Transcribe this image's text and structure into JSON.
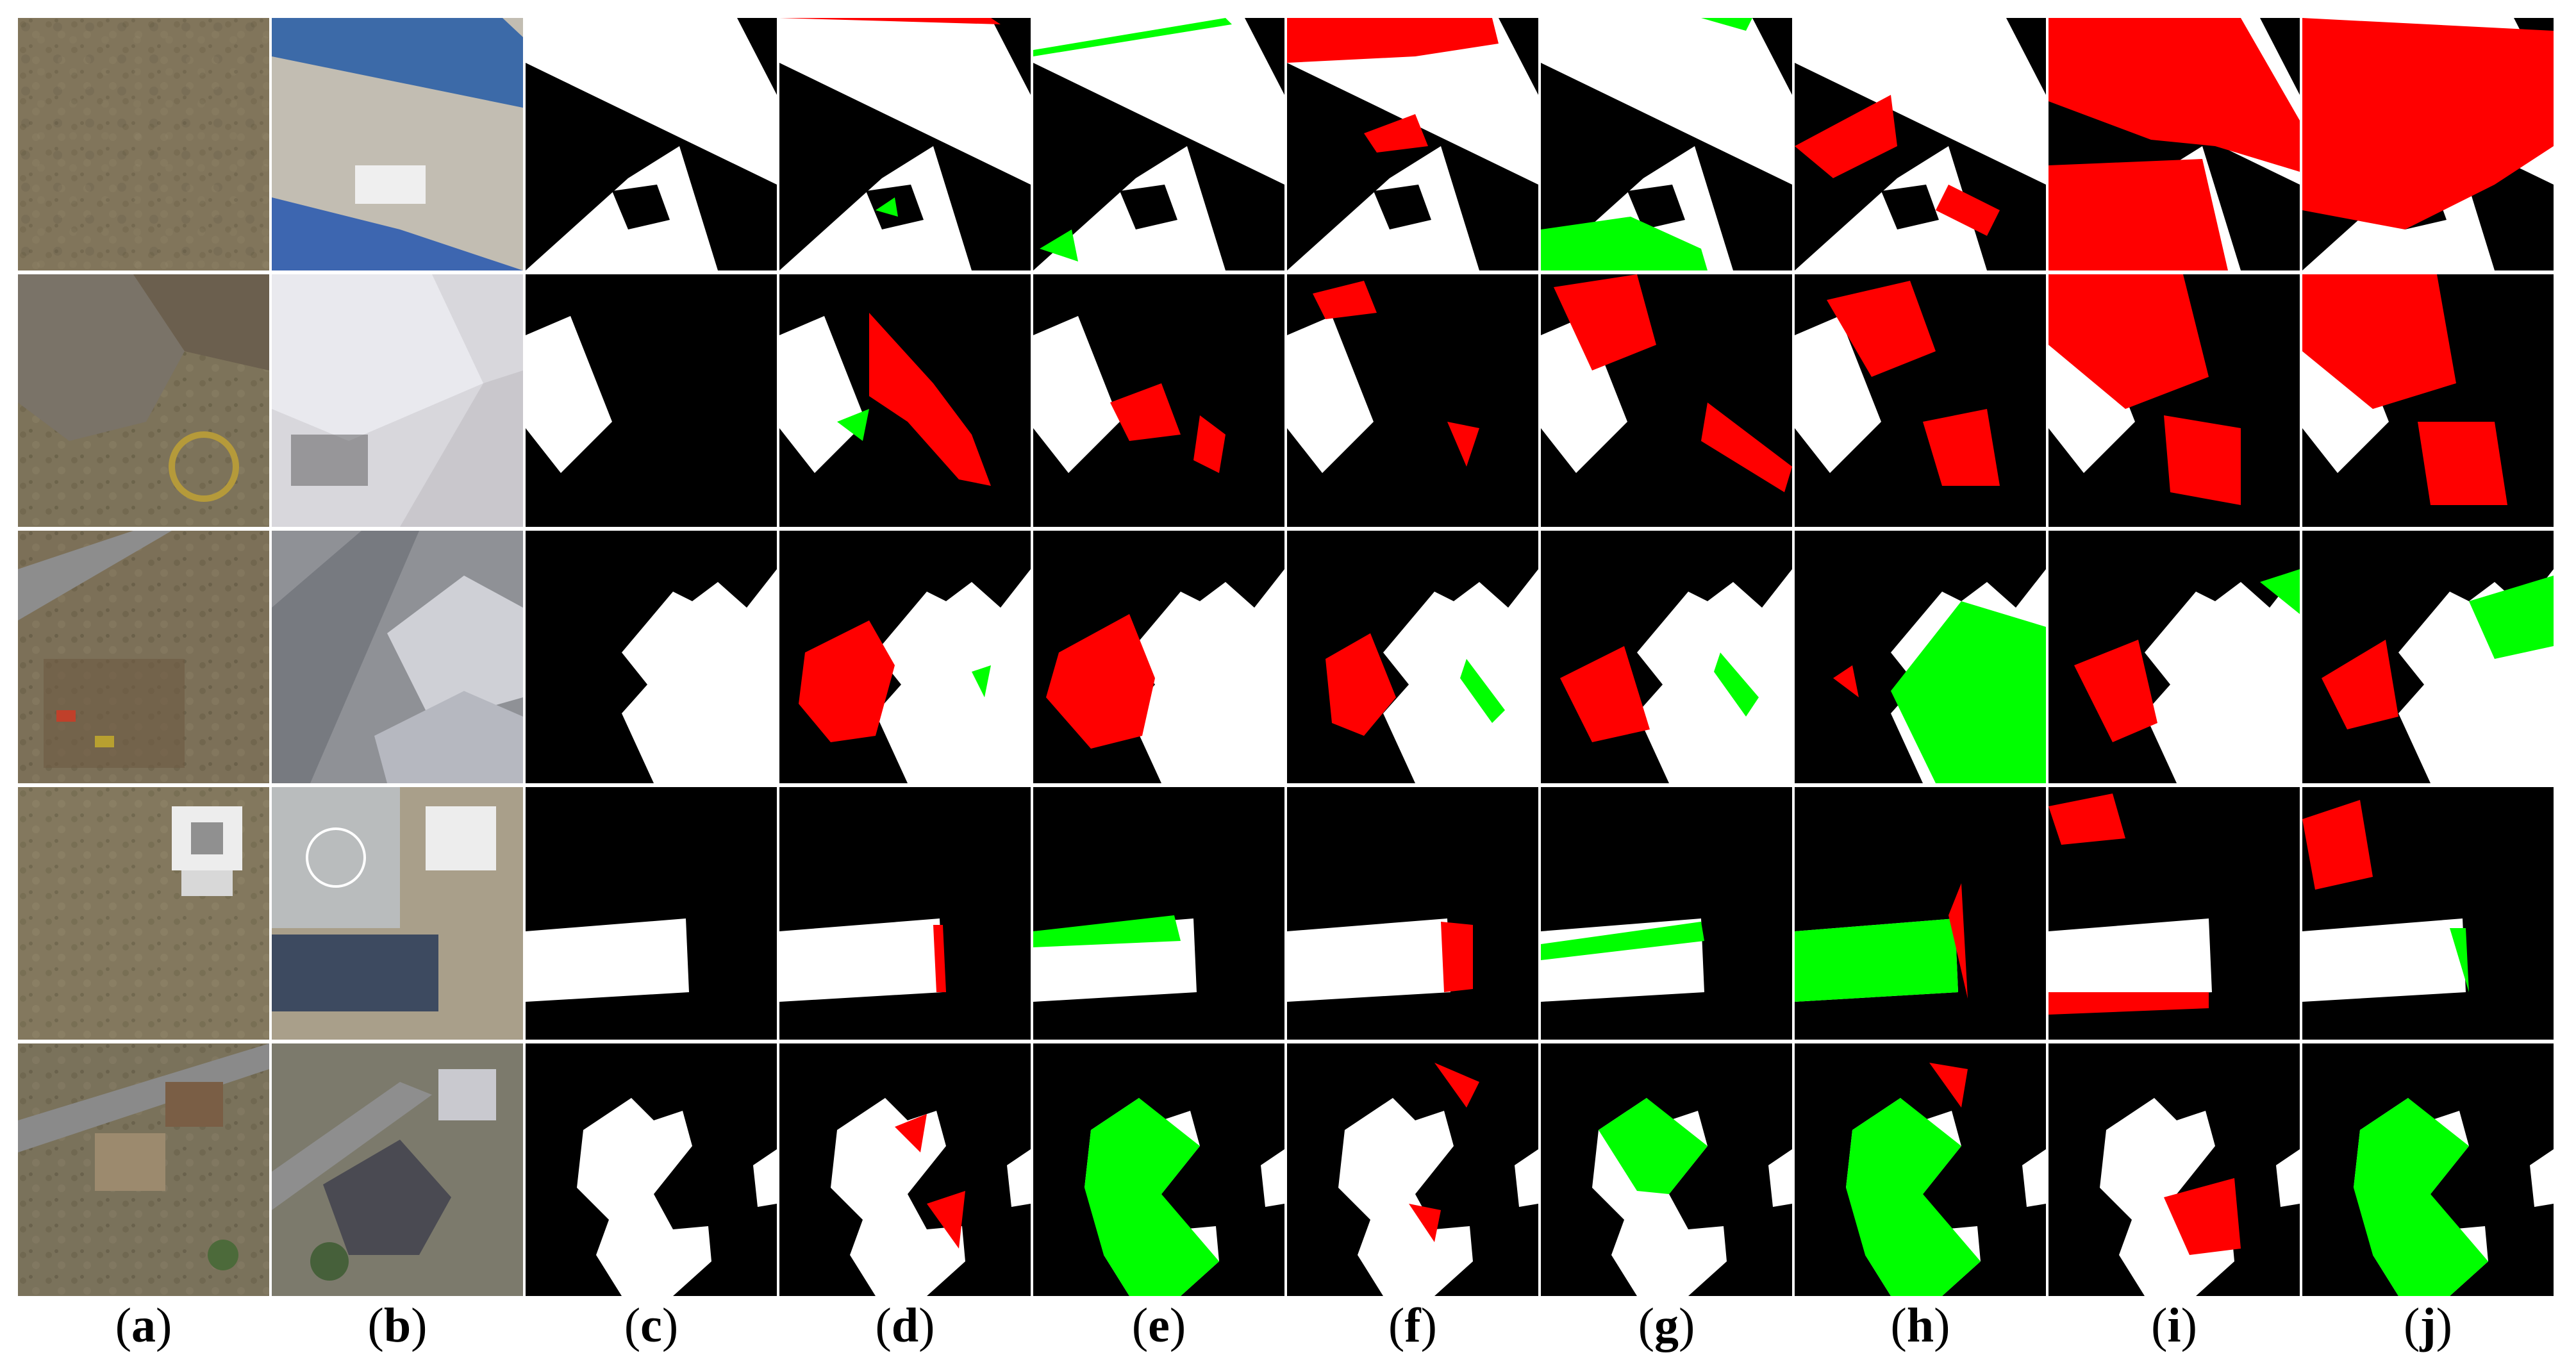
{
  "columns": [
    {
      "id": "a",
      "open": "(",
      "letter": "a",
      "close": ")"
    },
    {
      "id": "b",
      "open": "(",
      "letter": "b",
      "close": ")"
    },
    {
      "id": "c",
      "open": "(",
      "letter": "c",
      "close": ")"
    },
    {
      "id": "d",
      "open": "(",
      "letter": "d",
      "close": ")"
    },
    {
      "id": "e",
      "open": "(",
      "letter": "e",
      "close": ")"
    },
    {
      "id": "f",
      "open": "(",
      "letter": "f",
      "close": ")"
    },
    {
      "id": "g",
      "open": "(",
      "letter": "g",
      "close": ")"
    },
    {
      "id": "h",
      "open": "(",
      "letter": "h",
      "close": ")"
    },
    {
      "id": "i",
      "open": "(",
      "letter": "i",
      "close": ")"
    },
    {
      "id": "j",
      "open": "(",
      "letter": "j",
      "close": ")"
    }
  ],
  "rows": 5,
  "colors": {
    "background": "#000000",
    "building": "#ffffff",
    "false_positive": "#ff0000",
    "false_negative": "#00ff00",
    "separator": "#ffffff"
  }
}
